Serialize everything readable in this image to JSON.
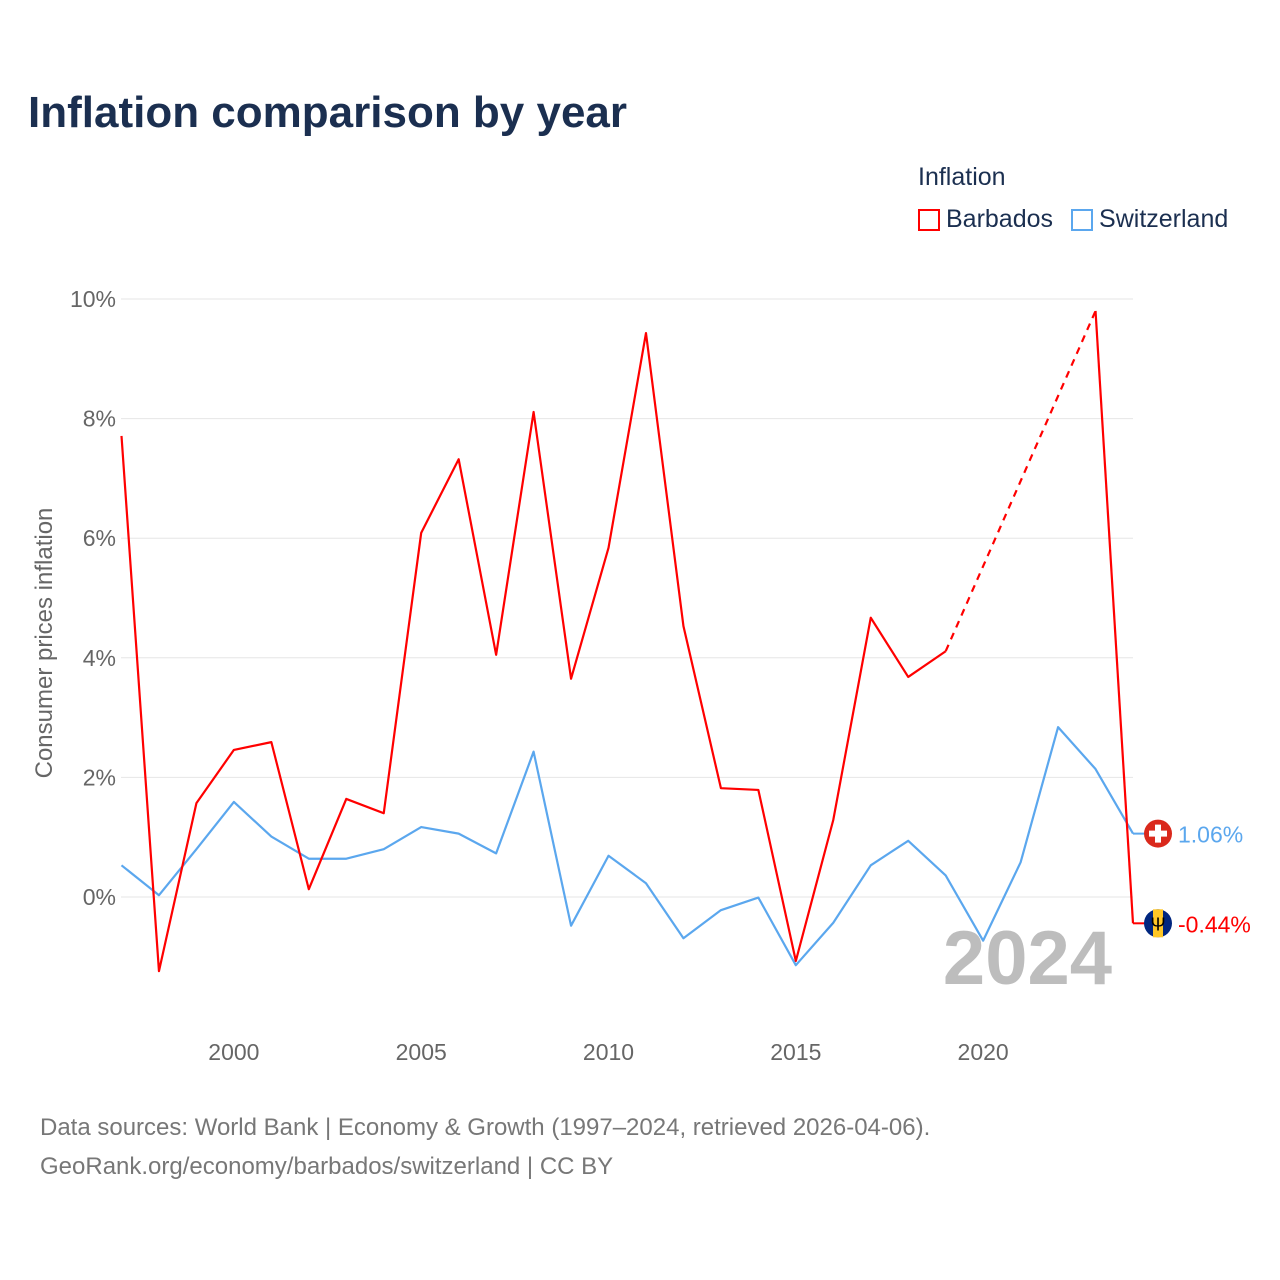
{
  "chart_data": {
    "type": "line",
    "title": "Inflation comparison by year",
    "ylabel": "Consumer prices inflation",
    "xlabel": "",
    "legend_title": "Inflation",
    "legend_position": "top-right",
    "ylim": [
      -1.9,
      10.2
    ],
    "xlim": [
      1997,
      2024
    ],
    "y_ticks": [
      0,
      2,
      4,
      6,
      8,
      10
    ],
    "y_tick_labels": [
      "0%",
      "2%",
      "4%",
      "6%",
      "8%",
      "10%"
    ],
    "x_ticks": [
      2000,
      2005,
      2010,
      2015,
      2020
    ],
    "x_tick_labels": [
      "2000",
      "2005",
      "2010",
      "2015",
      "2020"
    ],
    "grid": true,
    "year_watermark": "2024",
    "x": [
      1997,
      1998,
      1999,
      2000,
      2001,
      2002,
      2003,
      2004,
      2005,
      2006,
      2007,
      2008,
      2009,
      2010,
      2011,
      2012,
      2013,
      2014,
      2015,
      2016,
      2017,
      2018,
      2019,
      2020,
      2021,
      2022,
      2023,
      2024
    ],
    "series": [
      {
        "name": "Barbados",
        "color": "#ff0000",
        "end_label": "-0.44%",
        "flag": "barbados",
        "values": [
          7.71,
          -1.24,
          1.57,
          2.46,
          2.59,
          0.13,
          1.64,
          1.4,
          6.09,
          7.32,
          4.05,
          8.11,
          3.65,
          5.84,
          9.43,
          4.53,
          1.82,
          1.79,
          -1.07,
          1.29,
          4.67,
          3.68,
          4.11,
          null,
          null,
          null,
          9.8,
          -0.44
        ]
      },
      {
        "name": "Switzerland",
        "color": "#5ba7ee",
        "end_label": "1.06%",
        "flag": "switzerland",
        "values": [
          0.53,
          0.03,
          0.8,
          1.59,
          1.01,
          0.64,
          0.64,
          0.8,
          1.17,
          1.06,
          0.73,
          2.43,
          -0.48,
          0.69,
          0.23,
          -0.69,
          -0.22,
          -0.01,
          -1.14,
          -0.43,
          0.53,
          0.94,
          0.36,
          -0.73,
          0.58,
          2.84,
          2.14,
          1.06
        ]
      }
    ]
  },
  "source": {
    "line1": "Data sources: World Bank | Economy & Growth (1997–2024, retrieved 2026-04-06).",
    "line2": "GeoRank.org/economy/barbados/switzerland | CC BY"
  }
}
